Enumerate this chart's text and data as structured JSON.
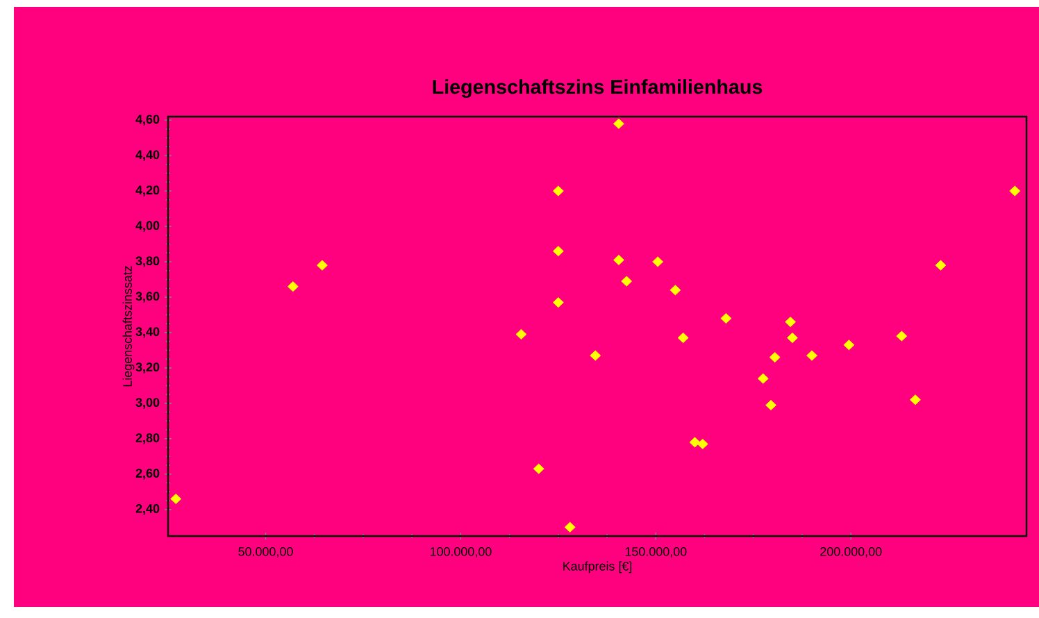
{
  "chart_data": {
    "type": "scatter",
    "title": "Liegenschaftszins Einfamilienhaus",
    "xlabel": "Kaufpreis [€]",
    "ylabel": "Liegenschaftszinssatz",
    "xlim": [
      25000,
      245000
    ],
    "ylim": [
      2.25,
      4.62
    ],
    "xticks": [
      {
        "value": 50000,
        "label": "50.000,00"
      },
      {
        "value": 100000,
        "label": "100.000,00"
      },
      {
        "value": 150000,
        "label": "150.000,00"
      },
      {
        "value": 200000,
        "label": "200.000,00"
      }
    ],
    "yticks": [
      {
        "value": 2.4,
        "label": "2,40"
      },
      {
        "value": 2.6,
        "label": "2,60"
      },
      {
        "value": 2.8,
        "label": "2,80"
      },
      {
        "value": 3.0,
        "label": "3,00"
      },
      {
        "value": 3.2,
        "label": "3,20"
      },
      {
        "value": 3.4,
        "label": "3,40"
      },
      {
        "value": 3.6,
        "label": "3,60"
      },
      {
        "value": 3.8,
        "label": "3,80"
      },
      {
        "value": 4.0,
        "label": "4,00"
      },
      {
        "value": 4.2,
        "label": "4,20"
      },
      {
        "value": 4.4,
        "label": "4,40"
      },
      {
        "value": 4.6,
        "label": "4,60"
      }
    ],
    "marker": "diamond",
    "series": [
      {
        "color": "#ffff00",
        "x": [
          27000,
          57000,
          64500,
          115500,
          120000,
          125000,
          125000,
          125000,
          128000,
          134500,
          140500,
          140500,
          142500,
          150500,
          155000,
          157000,
          160000,
          162000,
          168000,
          177500,
          179500,
          180500,
          184500,
          185000,
          190000,
          199500,
          213000,
          216500,
          223000,
          242000
        ],
        "values": [
          2.46,
          3.66,
          3.78,
          3.39,
          2.63,
          4.2,
          3.86,
          3.57,
          2.3,
          3.27,
          4.58,
          3.81,
          3.69,
          3.8,
          3.64,
          3.37,
          2.78,
          2.77,
          3.48,
          3.14,
          2.99,
          3.26,
          3.46,
          3.37,
          3.27,
          3.33,
          3.38,
          3.02,
          3.78,
          4.2
        ]
      }
    ]
  }
}
